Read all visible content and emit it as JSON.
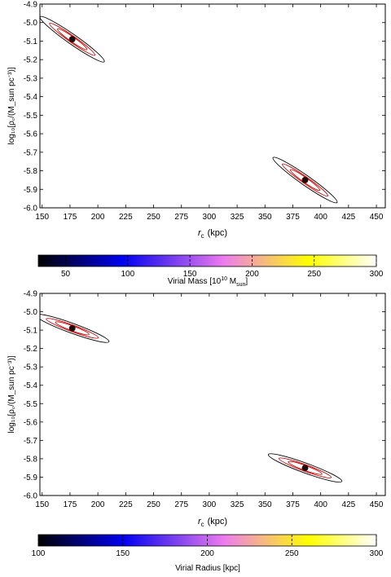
{
  "chart_data": [
    {
      "type": "heatmap",
      "xlabel_main": "r",
      "xlabel_sub": "c",
      "xlabel_unit": "(kpc)",
      "ylabel_text": "log₁₀[ρ꜀/(M_sun pc⁻³)]",
      "x_ticks": [
        150,
        175,
        200,
        225,
        250,
        275,
        300,
        325,
        350,
        375,
        400,
        425,
        450
      ],
      "y_ticks": [
        -4.9,
        -5.0,
        -5.1,
        -5.2,
        -5.3,
        -5.4,
        -5.5,
        -5.6,
        -5.7,
        -5.8,
        -5.9,
        -6.0
      ],
      "xlim": [
        148,
        458
      ],
      "ylim": [
        -6.0,
        -4.9
      ],
      "best_fit_points": [
        {
          "x": 177,
          "y": -5.09
        },
        {
          "x": 386,
          "y": -5.85
        }
      ],
      "colorbar": {
        "label": "Virial Mass [10",
        "label_sup": "10",
        "label_tail": " M",
        "label_sub": "sun",
        "label_end": "]",
        "range": [
          28,
          300
        ],
        "ticks": [
          50,
          100,
          150,
          200,
          250,
          300
        ],
        "colormap": [
          "#000000",
          "#0000f0",
          "#ee7cee",
          "#ffff00",
          "#ffffff"
        ]
      }
    },
    {
      "type": "heatmap",
      "xlabel_main": "r",
      "xlabel_sub": "c",
      "xlabel_unit": "(kpc)",
      "ylabel_text": "log₁₀[ρ꜀/(M_sun pc⁻³)]",
      "x_ticks": [
        150,
        175,
        200,
        225,
        250,
        275,
        300,
        325,
        350,
        375,
        400,
        425,
        450
      ],
      "y_ticks": [
        -4.9,
        -5.0,
        -5.1,
        -5.2,
        -5.3,
        -5.4,
        -5.5,
        -5.6,
        -5.7,
        -5.8,
        -5.9,
        -6.0
      ],
      "xlim": [
        148,
        458
      ],
      "ylim": [
        -6.0,
        -4.9
      ],
      "best_fit_points": [
        {
          "x": 177,
          "y": -5.09
        },
        {
          "x": 386,
          "y": -5.85
        }
      ],
      "colorbar": {
        "label": "Virial Radius [kpc]",
        "range": [
          100,
          300
        ],
        "ticks": [
          100,
          150,
          200,
          250,
          300
        ],
        "colormap": [
          "#000000",
          "#0000f0",
          "#ee7cee",
          "#ffff00",
          "#ffffff"
        ]
      }
    }
  ]
}
